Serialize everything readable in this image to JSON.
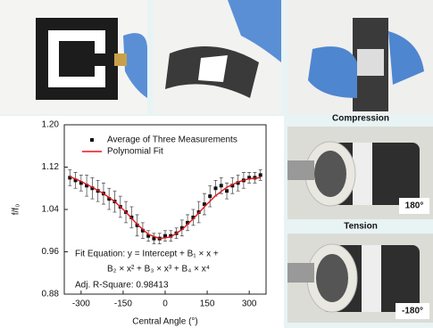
{
  "chart_data": {
    "type": "scatter",
    "x_label": "Central Angle (°)",
    "y_label": "f/f₀",
    "xlim": [
      -360,
      360
    ],
    "xticks": [
      -300,
      -150,
      0,
      150,
      300
    ],
    "ylim": [
      0.88,
      1.2
    ],
    "yticks": [
      0.88,
      0.96,
      1.04,
      1.12,
      {
        "value": 1.2,
        "label": "1.20"
      }
    ],
    "legend": "top-left",
    "series": [
      {
        "name": "Average of Three Measurements",
        "color": "#111111",
        "marker": "square",
        "x": [
          -340,
          -320,
          -300,
          -280,
          -260,
          -240,
          -220,
          -200,
          -180,
          -160,
          -140,
          -120,
          -100,
          -80,
          -60,
          -40,
          -20,
          0,
          20,
          40,
          60,
          80,
          100,
          120,
          140,
          160,
          180,
          200,
          220,
          240,
          260,
          280,
          300,
          320,
          340
        ],
        "values": [
          1.1,
          1.095,
          1.09,
          1.085,
          1.08,
          1.075,
          1.07,
          1.06,
          1.055,
          1.045,
          1.035,
          1.025,
          1.01,
          1.0,
          0.99,
          0.985,
          0.985,
          0.99,
          0.99,
          0.995,
          1.005,
          1.015,
          1.025,
          1.035,
          1.05,
          1.065,
          1.08,
          1.085,
          1.075,
          1.085,
          1.09,
          1.095,
          1.1,
          1.1,
          1.105
        ],
        "errors": [
          0.015,
          0.015,
          0.015,
          0.02,
          0.02,
          0.02,
          0.02,
          0.02,
          0.02,
          0.02,
          0.02,
          0.02,
          0.02,
          0.015,
          0.01,
          0.01,
          0.01,
          0.01,
          0.01,
          0.01,
          0.015,
          0.015,
          0.015,
          0.02,
          0.02,
          0.02,
          0.015,
          0.015,
          0.015,
          0.015,
          0.015,
          0.015,
          0.01,
          0.01,
          0.01
        ]
      },
      {
        "name": "Polynomial Fit",
        "color": "#e8141a",
        "kind": "line",
        "x": [
          -340,
          -300,
          -260,
          -220,
          -180,
          -140,
          -100,
          -60,
          -20,
          20,
          60,
          100,
          140,
          180,
          220,
          260,
          300,
          340
        ],
        "values": [
          1.102,
          1.093,
          1.082,
          1.07,
          1.055,
          1.035,
          1.012,
          0.993,
          0.985,
          0.988,
          1.002,
          1.022,
          1.045,
          1.066,
          1.082,
          1.092,
          1.098,
          1.1
        ]
      }
    ],
    "annotations": [
      "Fit Equation: y = Intercept + B₁ × x +",
      "B₂ × x² + B₃ × x³ + B₄ × x⁴",
      "Adj. R-Square: 0.98413"
    ]
  },
  "photos": {
    "compression_title": "Compression",
    "compression_angle": "180°",
    "tension_title": "Tension",
    "tension_angle": "-180°"
  }
}
